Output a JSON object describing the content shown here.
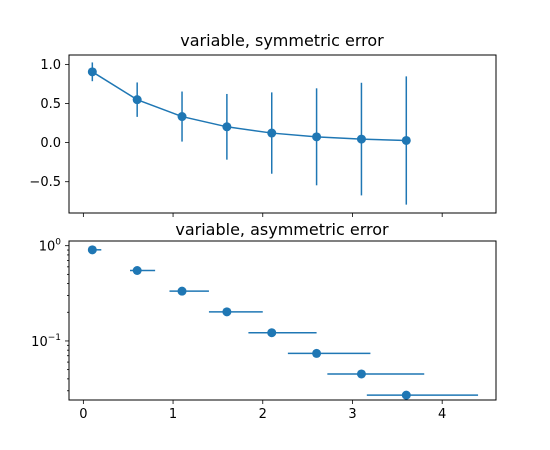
{
  "colors": {
    "series": "#1f77b4",
    "frame": "#000000"
  },
  "chart_data": [
    {
      "type": "errorbar",
      "title": "variable, symmetric error",
      "x": [
        0.1,
        0.6,
        1.1,
        1.6,
        2.1,
        2.6,
        3.1,
        3.6
      ],
      "y": [
        0.905,
        0.549,
        0.333,
        0.202,
        0.122,
        0.074,
        0.045,
        0.027
      ],
      "yerr": [
        0.12,
        0.22,
        0.32,
        0.42,
        0.52,
        0.62,
        0.72,
        0.82
      ],
      "connect_points": true,
      "xlim": [
        -0.16,
        4.6
      ],
      "ylim": [
        -0.9,
        1.12
      ],
      "yticks": [
        1.0,
        0.5,
        0.0,
        -0.5
      ],
      "yticklabels": [
        "1.0",
        "0.5",
        "0.0",
        "−0.5"
      ],
      "xticks": [
        0,
        1,
        2,
        3,
        4
      ],
      "show_xticklabels": false,
      "yscale": "linear",
      "grid": false
    },
    {
      "type": "errorbar",
      "title": "variable, asymmetric error",
      "x": [
        0.1,
        0.6,
        1.1,
        1.6,
        2.1,
        2.6,
        3.1,
        3.6
      ],
      "y": [
        0.905,
        0.549,
        0.333,
        0.202,
        0.122,
        0.074,
        0.045,
        0.027
      ],
      "xerr_lower": [
        0.02,
        0.08,
        0.14,
        0.2,
        0.26,
        0.32,
        0.38,
        0.44
      ],
      "xerr_upper": [
        0.1,
        0.2,
        0.3,
        0.4,
        0.5,
        0.6,
        0.7,
        0.8
      ],
      "connect_points": false,
      "xlim": [
        -0.16,
        4.6
      ],
      "ylim": [
        0.024,
        1.12
      ],
      "yscale": "log",
      "yticks": [
        1.0,
        0.1
      ],
      "yticklabels": [
        {
          "base": "10",
          "exp": "0"
        },
        {
          "base": "10",
          "exp": "−1"
        }
      ],
      "xticks": [
        0,
        1,
        2,
        3,
        4
      ],
      "xticklabels": [
        "0",
        "1",
        "2",
        "3",
        "4"
      ],
      "show_xticklabels": true,
      "grid": false
    }
  ]
}
